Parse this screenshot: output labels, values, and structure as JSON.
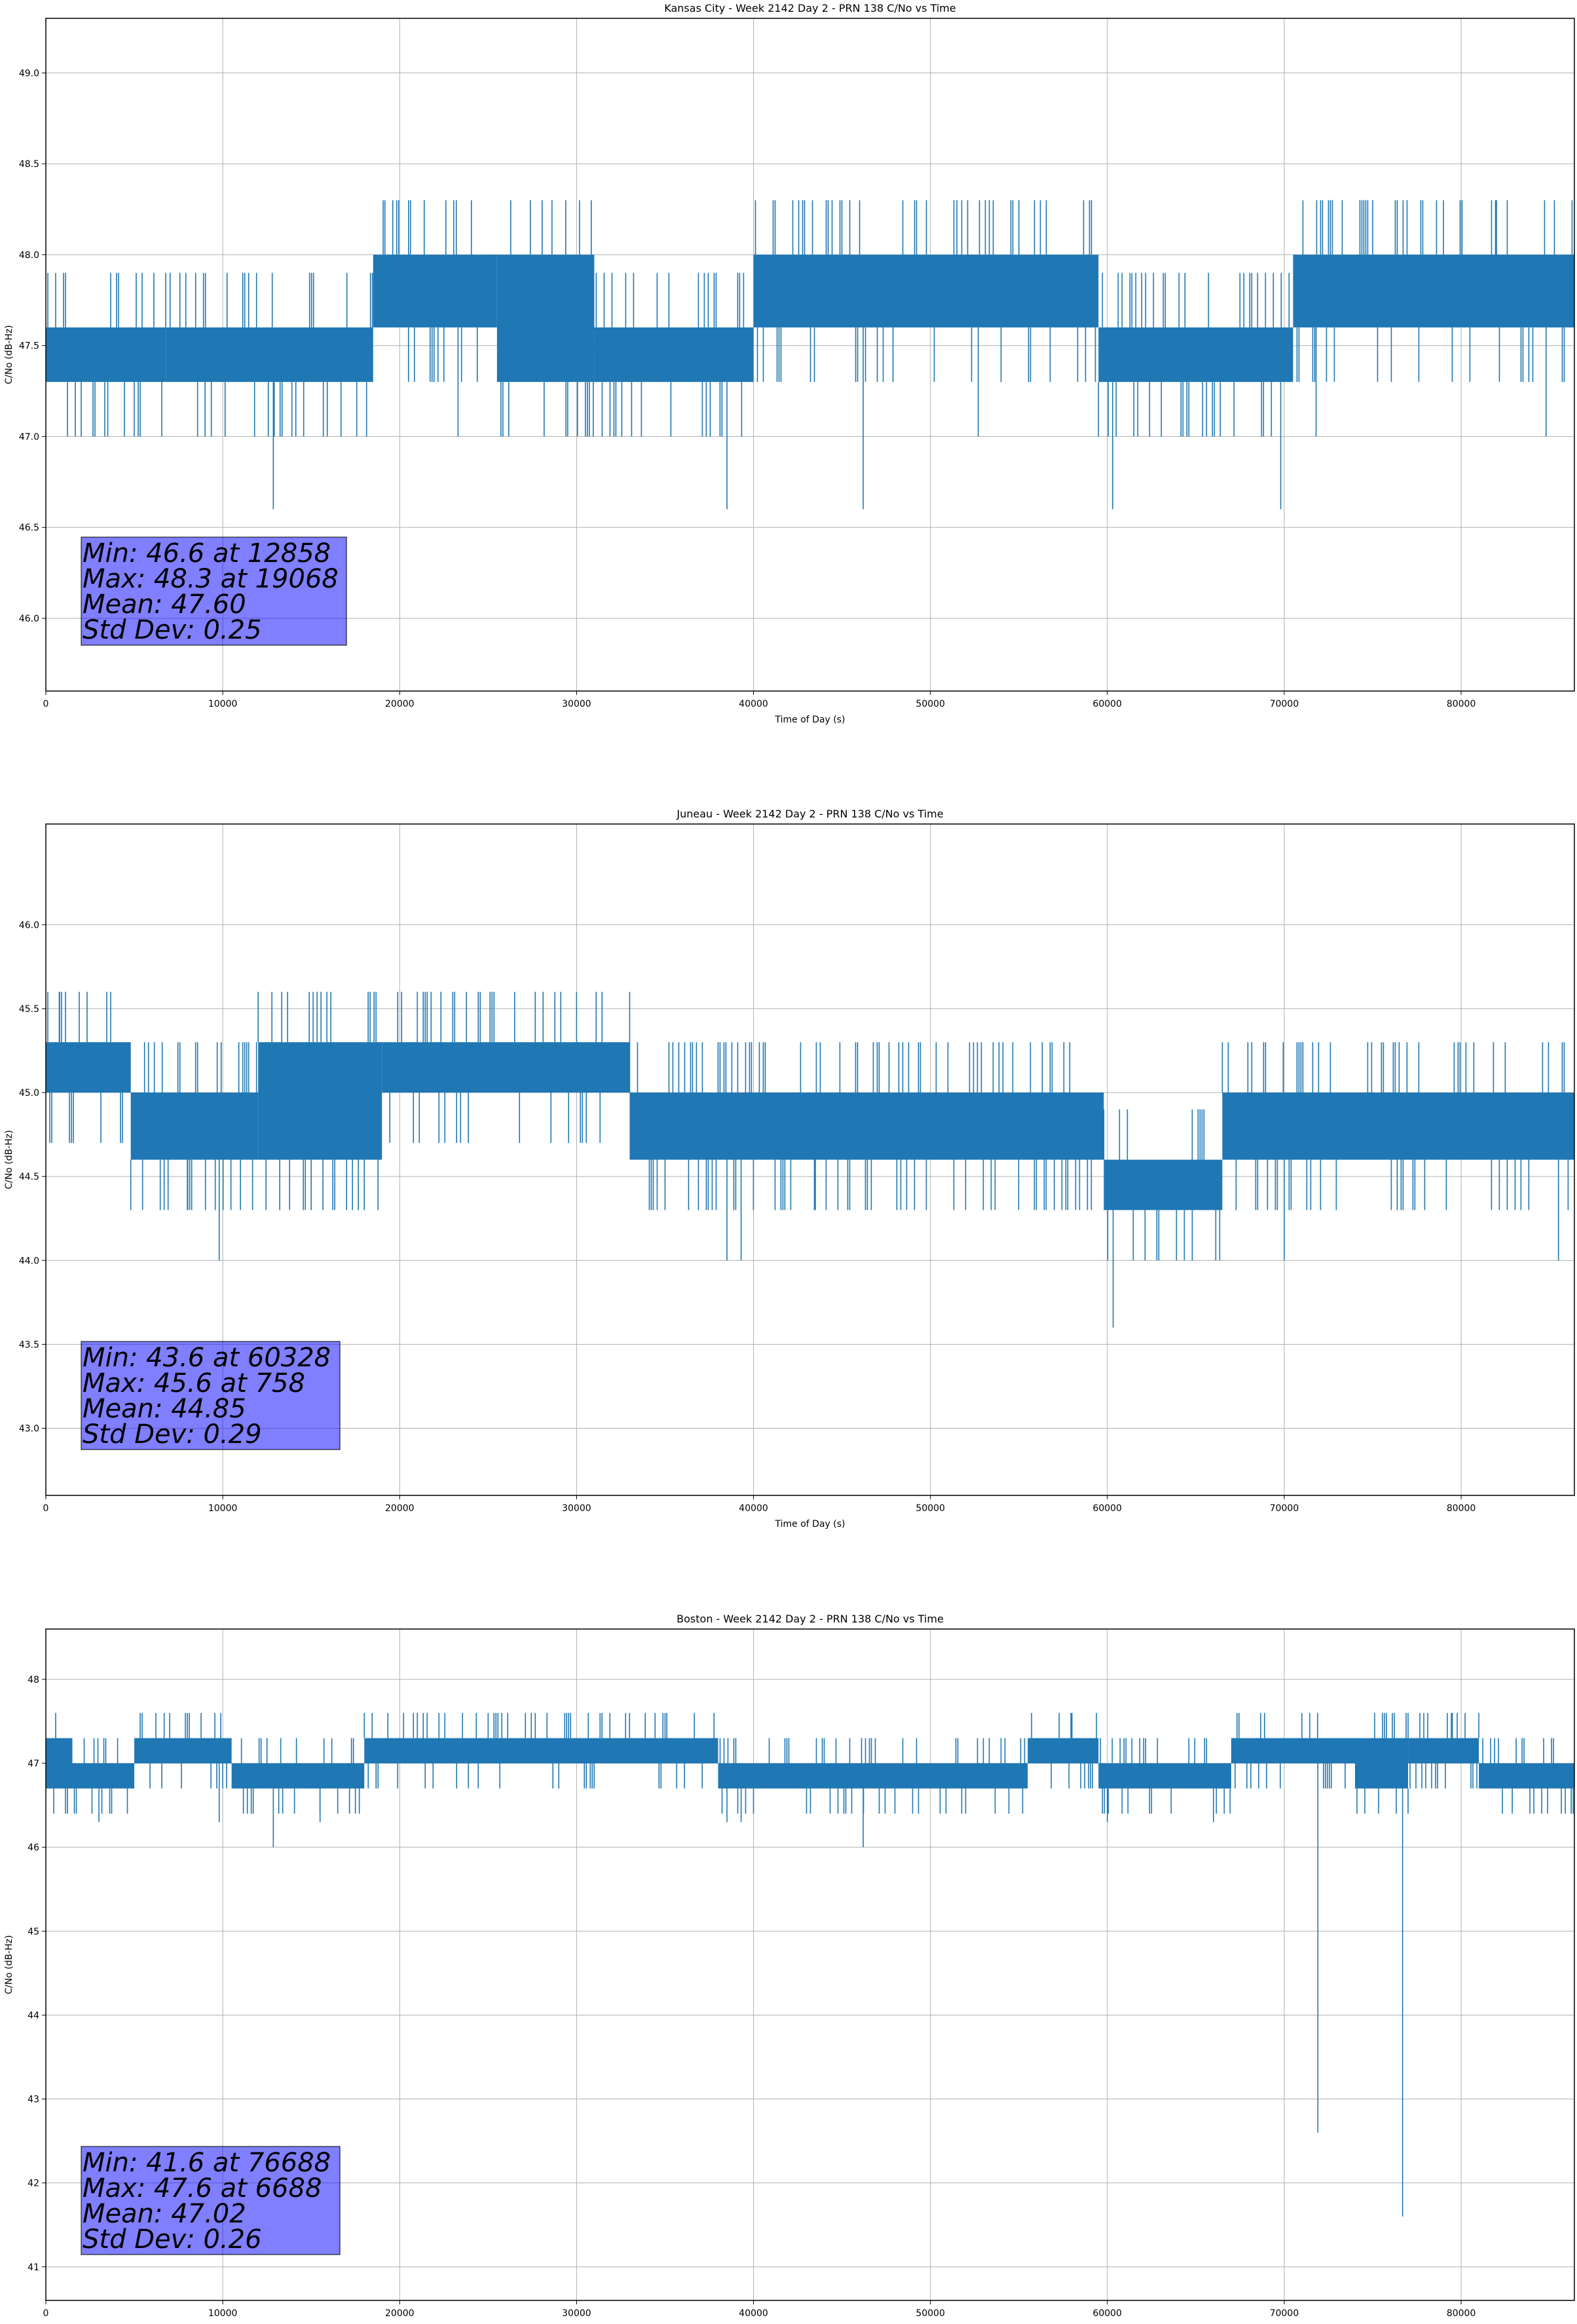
{
  "chart_data": [
    {
      "type": "line",
      "title": "Kansas City - Week 2142 Day 2 - PRN 138 C/No vs Time",
      "xlabel": "Time of Day (s)",
      "ylabel": "C/No (dB-Hz)",
      "xlim": [
        0,
        86400
      ],
      "ylim": [
        45.6,
        49.3
      ],
      "xticks": [
        0,
        10000,
        20000,
        30000,
        40000,
        50000,
        60000,
        70000,
        80000
      ],
      "yticks": [
        "46.0",
        "46.5",
        "47.0",
        "47.5",
        "48.0",
        "48.5",
        "49.0"
      ],
      "grid": true,
      "color": "#1f77b4",
      "stats": [
        "Min: 46.6 at 12858",
        "Max: 48.3 at 19068",
        "Mean: 47.60",
        "Std Dev: 0.25"
      ],
      "segments": [
        {
          "x": [
            0,
            6800
          ],
          "band": [
            47.3,
            47.6
          ]
        },
        {
          "x": [
            6800,
            18500
          ],
          "band": [
            47.3,
            47.6
          ]
        },
        {
          "x": [
            18500,
            25500
          ],
          "band": [
            47.6,
            48.0
          ]
        },
        {
          "x": [
            25500,
            31000
          ],
          "band": [
            47.3,
            48.0
          ]
        },
        {
          "x": [
            31000,
            40000
          ],
          "band": [
            47.3,
            47.6
          ]
        },
        {
          "x": [
            40000,
            59500
          ],
          "band": [
            47.6,
            48.0
          ]
        },
        {
          "x": [
            59500,
            70500
          ],
          "band": [
            47.3,
            47.6
          ]
        },
        {
          "x": [
            70500,
            86400
          ],
          "band": [
            47.6,
            48.0
          ]
        }
      ],
      "spikes": [
        [
          12858,
          46.6
        ],
        [
          19068,
          48.3
        ],
        [
          38500,
          46.6
        ],
        [
          46200,
          46.6
        ],
        [
          60300,
          46.6
        ],
        [
          69800,
          46.6
        ],
        [
          20500,
          48.3
        ],
        [
          23200,
          48.3
        ],
        [
          51500,
          48.3
        ],
        [
          55000,
          48.3
        ],
        [
          75000,
          48.3
        ],
        [
          79000,
          48.3
        ],
        [
          82000,
          48.3
        ],
        [
          3500,
          47.0
        ],
        [
          9000,
          47.0
        ],
        [
          23300,
          47.0
        ],
        [
          29400,
          47.0
        ],
        [
          52700,
          47.0
        ],
        [
          71800,
          47.0
        ],
        [
          84800,
          47.0
        ]
      ]
    },
    {
      "type": "line",
      "title": "Juneau - Week 2142 Day 2 - PRN 138 C/No vs Time",
      "xlabel": "Time of Day (s)",
      "ylabel": "C/No (dB-Hz)",
      "xlim": [
        0,
        86400
      ],
      "ylim": [
        42.6,
        46.6
      ],
      "xticks": [
        0,
        10000,
        20000,
        30000,
        40000,
        50000,
        60000,
        70000,
        80000
      ],
      "yticks": [
        "43.0",
        "43.5",
        "44.0",
        "44.5",
        "45.0",
        "45.5",
        "46.0"
      ],
      "grid": true,
      "color": "#1f77b4",
      "stats": [
        "Min: 43.6 at 60328",
        "Max: 45.6 at 758",
        "Mean: 44.85",
        "Std Dev: 0.29"
      ],
      "segments": [
        {
          "x": [
            0,
            4800
          ],
          "band": [
            45.0,
            45.3
          ]
        },
        {
          "x": [
            4800,
            12000
          ],
          "band": [
            44.6,
            45.0
          ]
        },
        {
          "x": [
            12000,
            19000
          ],
          "band": [
            44.6,
            45.3
          ]
        },
        {
          "x": [
            19000,
            33000
          ],
          "band": [
            45.0,
            45.3
          ]
        },
        {
          "x": [
            33000,
            59800
          ],
          "band": [
            44.6,
            45.0
          ]
        },
        {
          "x": [
            59800,
            66500
          ],
          "band": [
            44.3,
            44.6
          ]
        },
        {
          "x": [
            66500,
            86400
          ],
          "band": [
            44.6,
            45.0
          ]
        }
      ],
      "spikes": [
        [
          758,
          45.6
        ],
        [
          60328,
          43.6
        ],
        [
          9800,
          44.0
        ],
        [
          38500,
          44.0
        ],
        [
          39300,
          44.0
        ],
        [
          64800,
          44.0
        ],
        [
          70000,
          44.0
        ],
        [
          85500,
          44.0
        ],
        [
          23000,
          45.6
        ],
        [
          26500,
          45.6
        ],
        [
          30000,
          45.6
        ],
        [
          33000,
          45.6
        ],
        [
          8000,
          44.3
        ],
        [
          11000,
          44.3
        ],
        [
          17000,
          44.3
        ],
        [
          43500,
          44.3
        ],
        [
          57000,
          44.3
        ]
      ]
    },
    {
      "type": "line",
      "title": "Boston - Week 2142 Day 2 - PRN 138 C/No vs Time",
      "xlabel": "Time of Day (s)",
      "ylabel": "C/No (dB-Hz)",
      "xlim": [
        0,
        86400
      ],
      "ylim": [
        40.6,
        48.6
      ],
      "xticks": [
        0,
        10000,
        20000,
        30000,
        40000,
        50000,
        60000,
        70000,
        80000
      ],
      "yticks": [
        "41",
        "42",
        "43",
        "44",
        "45",
        "46",
        "47",
        "48"
      ],
      "grid": true,
      "color": "#1f77b4",
      "stats": [
        "Min: 41.6 at 76688",
        "Max: 47.6 at 6688",
        "Mean: 47.02",
        "Std Dev: 0.26"
      ],
      "segments": [
        {
          "x": [
            0,
            1500
          ],
          "band": [
            46.7,
            47.3
          ]
        },
        {
          "x": [
            1500,
            5000
          ],
          "band": [
            46.7,
            47.0
          ]
        },
        {
          "x": [
            5000,
            10500
          ],
          "band": [
            47.0,
            47.3
          ]
        },
        {
          "x": [
            10500,
            18000
          ],
          "band": [
            46.7,
            47.0
          ]
        },
        {
          "x": [
            18000,
            38000
          ],
          "band": [
            47.0,
            47.3
          ]
        },
        {
          "x": [
            38000,
            55500
          ],
          "band": [
            46.7,
            47.0
          ]
        },
        {
          "x": [
            55500,
            59500
          ],
          "band": [
            47.0,
            47.3
          ]
        },
        {
          "x": [
            59500,
            67000
          ],
          "band": [
            46.7,
            47.0
          ]
        },
        {
          "x": [
            67000,
            74000
          ],
          "band": [
            47.0,
            47.3
          ]
        },
        {
          "x": [
            74000,
            77000
          ],
          "band": [
            46.7,
            47.3
          ]
        },
        {
          "x": [
            77000,
            81000
          ],
          "band": [
            47.0,
            47.3
          ]
        },
        {
          "x": [
            81000,
            86400
          ],
          "band": [
            46.7,
            47.0
          ]
        }
      ],
      "spikes": [
        [
          76688,
          41.6
        ],
        [
          71900,
          42.6
        ],
        [
          6688,
          47.6
        ],
        [
          12858,
          46.0
        ],
        [
          46200,
          46.0
        ],
        [
          3000,
          46.3
        ],
        [
          9800,
          46.3
        ],
        [
          15500,
          46.3
        ],
        [
          38500,
          46.3
        ],
        [
          39300,
          46.3
        ],
        [
          58000,
          47.6
        ],
        [
          60000,
          46.3
        ],
        [
          66000,
          46.3
        ],
        [
          79500,
          47.6
        ],
        [
          25000,
          47.6
        ],
        [
          35000,
          47.6
        ]
      ]
    }
  ]
}
